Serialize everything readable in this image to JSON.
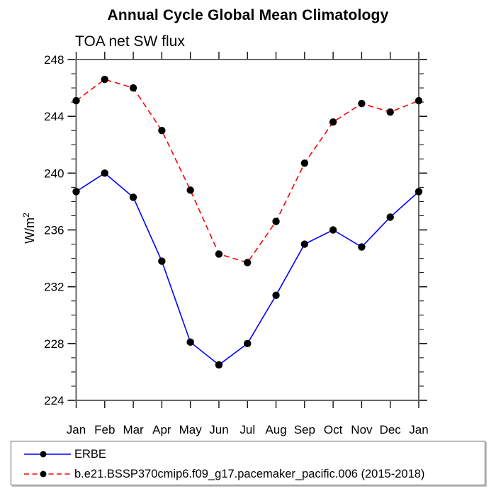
{
  "chart_data": {
    "type": "line",
    "title": "Annual Cycle Global Mean Climatology",
    "subtitle": "TOA net SW flux",
    "ylabel": {
      "unit": "W/m",
      "exponent": "2"
    },
    "x_tick_labels": [
      "Jan",
      "Feb",
      "Mar",
      "Apr",
      "May",
      "Jun",
      "Jul",
      "Aug",
      "Sep",
      "Oct",
      "Nov",
      "Dec",
      "Jan"
    ],
    "ylim": [
      224,
      248
    ],
    "y_major_ticks": [
      224,
      228,
      232,
      236,
      240,
      244,
      248
    ],
    "y_minor_tick_step": 1,
    "grid": false,
    "legend_position": "boxed legend below plot, left aligned",
    "frame_color": "#666666",
    "tick_color": "#111111",
    "series": [
      {
        "name": "ERBE",
        "color": "#0000ff",
        "line_style": "solid",
        "marker": "filled-circle",
        "marker_color": "#000000",
        "values": [
          238.7,
          240.0,
          238.3,
          233.8,
          228.1,
          226.5,
          228.0,
          231.4,
          235.0,
          236.0,
          234.8,
          236.9,
          238.7
        ]
      },
      {
        "name": "b.e21.BSSP370cmip6.f09_g17.pacemaker_pacific.006 (2015-2018)",
        "color": "#ff0000",
        "line_style": "dashed",
        "marker": "filled-circle",
        "marker_color": "#000000",
        "values": [
          245.1,
          246.6,
          246.0,
          243.0,
          238.8,
          234.3,
          233.7,
          236.6,
          240.7,
          243.6,
          244.9,
          244.3,
          245.1
        ]
      }
    ]
  }
}
